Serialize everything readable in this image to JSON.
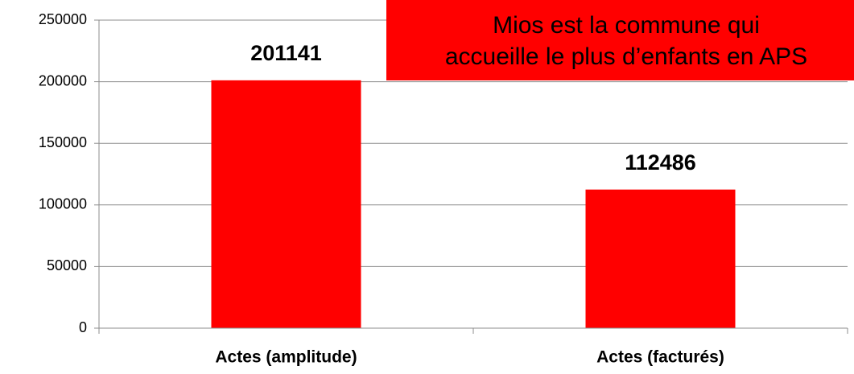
{
  "chart_data": {
    "type": "bar",
    "categories": [
      "Actes (amplitude)",
      "Actes (facturés)"
    ],
    "values": [
      201141,
      112486
    ],
    "color": "#ff0000",
    "ylim": [
      0,
      250000
    ],
    "yticks": [
      0,
      50000,
      100000,
      150000,
      200000,
      250000
    ],
    "grid": true,
    "annotation": [
      "Mios est la commune qui",
      "accueille le plus d’enfants en APS"
    ],
    "annotation_color": "#ff0000"
  }
}
